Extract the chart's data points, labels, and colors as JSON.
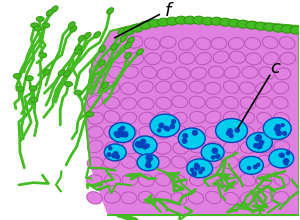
{
  "background_color": "#ffffff",
  "fig_width": 3.0,
  "fig_height": 2.2,
  "dpi": 100,
  "colors": {
    "green_hyphae": "#44bb22",
    "green_hyphae_dark": "#339911",
    "medulla_fill": "#e080e0",
    "medulla_cell_line": "#bb55bb",
    "alga_fill": "#00ccee",
    "alga_dot": "#0044bb",
    "cortex_green": "#44bb22"
  },
  "label_f": "f",
  "label_c": "c",
  "label_fontsize": 13
}
